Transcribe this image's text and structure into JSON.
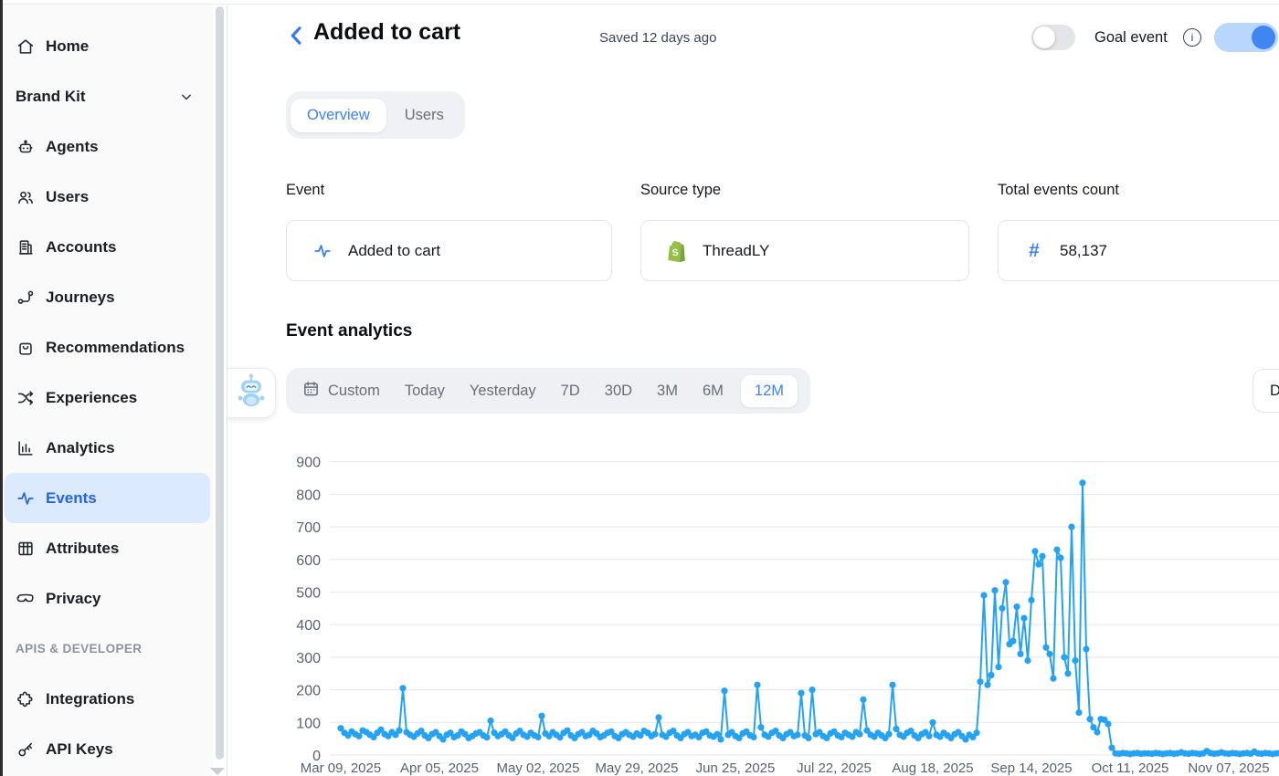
{
  "sidebar": {
    "items": [
      {
        "label": "Home",
        "icon": "home-icon"
      },
      {
        "label": "Brand Kit",
        "icon": null,
        "chevron": true
      },
      {
        "label": "Agents",
        "icon": "robot-icon"
      },
      {
        "label": "Users",
        "icon": "users-icon"
      },
      {
        "label": "Accounts",
        "icon": "building-icon"
      },
      {
        "label": "Journeys",
        "icon": "journey-icon"
      },
      {
        "label": "Recommendations",
        "icon": "bag-icon"
      },
      {
        "label": "Experiences",
        "icon": "shuffle-icon"
      },
      {
        "label": "Analytics",
        "icon": "bar-chart-icon"
      },
      {
        "label": "Events",
        "icon": "pulse-icon",
        "active": true
      },
      {
        "label": "Attributes",
        "icon": "table-icon"
      },
      {
        "label": "Privacy",
        "icon": "mask-icon"
      }
    ],
    "section_label": "APIS & DEVELOPER",
    "section_items": [
      {
        "label": "Integrations",
        "icon": "puzzle-icon"
      },
      {
        "label": "API Keys",
        "icon": "key-icon"
      }
    ]
  },
  "header": {
    "title": "Added to cart",
    "saved_text": "Saved 12 days ago",
    "goal_event_label": "Goal event",
    "toggle_left_state": "off",
    "toggle_right_state": "on"
  },
  "tabs": [
    {
      "label": "Overview",
      "active": true
    },
    {
      "label": "Users",
      "active": false
    }
  ],
  "fields": {
    "event": {
      "label": "Event",
      "value": "Added to cart"
    },
    "source": {
      "label": "Source type",
      "value": "ThreadLY"
    },
    "count": {
      "label": "Total events count",
      "value": "58,137"
    }
  },
  "analytics": {
    "heading": "Event analytics",
    "ranges": [
      "Custom",
      "Today",
      "Yesterday",
      "7D",
      "30D",
      "3M",
      "6M",
      "12M"
    ],
    "active_range": "12M",
    "granularity_button_visible_text": "D"
  },
  "colors": {
    "accent_blue": "#3b82f6",
    "selected_nav_bg": "#dbeafe",
    "selected_nav_text": "#2563eb",
    "toggle_on_track": "#b9d7fc",
    "toggle_on_knob": "#3f86f4",
    "shopify_green": "#95bf47",
    "chart_line": "#25a3f2"
  },
  "chart_data": {
    "type": "line",
    "title": "Event analytics",
    "x_start_date": "2025-03-09",
    "x_unit": "day",
    "ylim": [
      0,
      900
    ],
    "ytick_step": 100,
    "grid": "horizontal",
    "legend": "none",
    "markers": true,
    "line_color": "#25a3f2",
    "axis_color": "#596270",
    "grid_color": "#e8eaee",
    "tick_indices": [
      0,
      27,
      54,
      81,
      108,
      135,
      162,
      189,
      216,
      243
    ],
    "tick_labels": [
      "Mar 09, 2025",
      "Apr 05, 2025",
      "May 02, 2025",
      "May 29, 2025",
      "Jun 25, 2025",
      "Jul 22, 2025",
      "Aug 18, 2025",
      "Sep 14, 2025",
      "Oct 11, 2025",
      "Nov 07, 2025"
    ],
    "values": [
      82,
      68,
      60,
      72,
      64,
      58,
      75,
      70,
      62,
      55,
      68,
      78,
      64,
      58,
      70,
      62,
      75,
      205,
      70,
      62,
      56,
      66,
      74,
      60,
      52,
      64,
      70,
      58,
      48,
      62,
      68,
      55,
      60,
      72,
      64,
      52,
      58,
      66,
      70,
      60,
      54,
      105,
      68,
      58,
      64,
      72,
      60,
      52,
      66,
      74,
      62,
      56,
      68,
      60,
      55,
      120,
      66,
      58,
      70,
      62,
      54,
      68,
      75,
      60,
      52,
      64,
      70,
      58,
      62,
      74,
      66,
      55,
      60,
      68,
      72,
      58,
      52,
      64,
      70,
      62,
      56,
      66,
      60,
      74,
      68,
      58,
      64,
      115,
      62,
      56,
      68,
      74,
      60,
      52,
      64,
      70,
      58,
      62,
      55,
      68,
      72,
      60,
      56,
      64,
      48,
      197,
      62,
      70,
      58,
      52,
      66,
      72,
      60,
      55,
      215,
      85,
      62,
      56,
      68,
      74,
      60,
      52,
      64,
      70,
      58,
      62,
      190,
      60,
      52,
      200,
      64,
      70,
      58,
      52,
      66,
      72,
      60,
      55,
      68,
      62,
      56,
      70,
      64,
      170,
      75,
      62,
      56,
      68,
      60,
      52,
      64,
      215,
      80,
      62,
      56,
      68,
      74,
      60,
      52,
      64,
      70,
      58,
      100,
      62,
      56,
      68,
      60,
      52,
      64,
      70,
      58,
      48,
      62,
      55,
      68,
      225,
      490,
      215,
      245,
      505,
      270,
      450,
      530,
      340,
      350,
      455,
      310,
      420,
      290,
      475,
      625,
      585,
      610,
      330,
      310,
      235,
      630,
      605,
      300,
      250,
      700,
      290,
      130,
      835,
      325,
      110,
      85,
      70,
      110,
      108,
      95,
      22,
      5,
      4,
      6,
      5,
      3,
      5,
      6,
      4,
      5,
      5,
      4,
      6,
      5,
      3,
      5,
      6,
      4,
      5,
      8,
      5,
      4,
      6,
      5,
      3,
      5,
      12,
      6,
      4,
      5,
      8,
      5,
      4,
      6,
      5,
      3,
      5,
      6,
      4,
      10,
      5,
      4,
      6,
      5,
      3,
      5,
      6
    ]
  }
}
